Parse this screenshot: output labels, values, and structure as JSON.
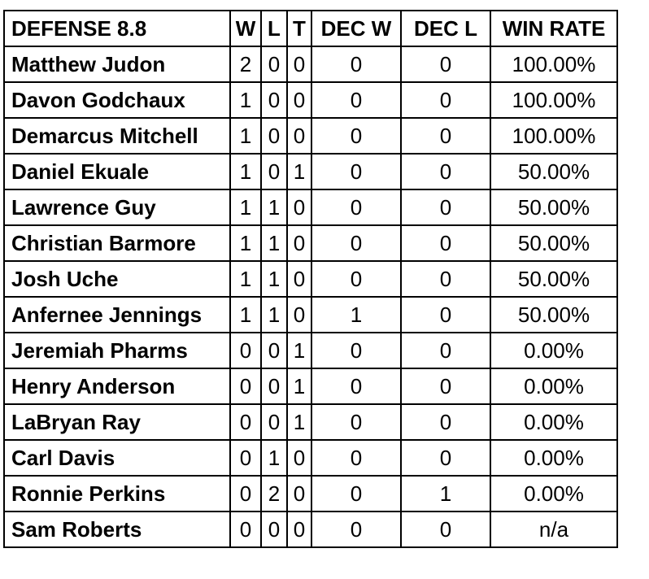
{
  "table": {
    "headers": [
      "DEFENSE 8.8",
      "W",
      "L",
      "T",
      "DEC W",
      "DEC L",
      "WIN RATE"
    ],
    "rows": [
      [
        "Matthew Judon",
        "2",
        "0",
        "0",
        "0",
        "0",
        "100.00%"
      ],
      [
        "Davon Godchaux",
        "1",
        "0",
        "0",
        "0",
        "0",
        "100.00%"
      ],
      [
        "Demarcus Mitchell",
        "1",
        "0",
        "0",
        "0",
        "0",
        "100.00%"
      ],
      [
        "Daniel Ekuale",
        "1",
        "0",
        "1",
        "0",
        "0",
        "50.00%"
      ],
      [
        "Lawrence Guy",
        "1",
        "1",
        "0",
        "0",
        "0",
        "50.00%"
      ],
      [
        "Christian Barmore",
        "1",
        "1",
        "0",
        "0",
        "0",
        "50.00%"
      ],
      [
        "Josh Uche",
        "1",
        "1",
        "0",
        "0",
        "0",
        "50.00%"
      ],
      [
        "Anfernee Jennings",
        "1",
        "1",
        "0",
        "1",
        "0",
        "50.00%"
      ],
      [
        "Jeremiah Pharms",
        "0",
        "0",
        "1",
        "0",
        "0",
        "0.00%"
      ],
      [
        "Henry Anderson",
        "0",
        "0",
        "1",
        "0",
        "0",
        "0.00%"
      ],
      [
        "LaBryan Ray",
        "0",
        "0",
        "1",
        "0",
        "0",
        "0.00%"
      ],
      [
        "Carl Davis",
        "0",
        "1",
        "0",
        "0",
        "0",
        "0.00%"
      ],
      [
        "Ronnie Perkins",
        "0",
        "2",
        "0",
        "0",
        "1",
        "0.00%"
      ],
      [
        "Sam Roberts",
        "0",
        "0",
        "0",
        "0",
        "0",
        "n/a"
      ]
    ]
  }
}
